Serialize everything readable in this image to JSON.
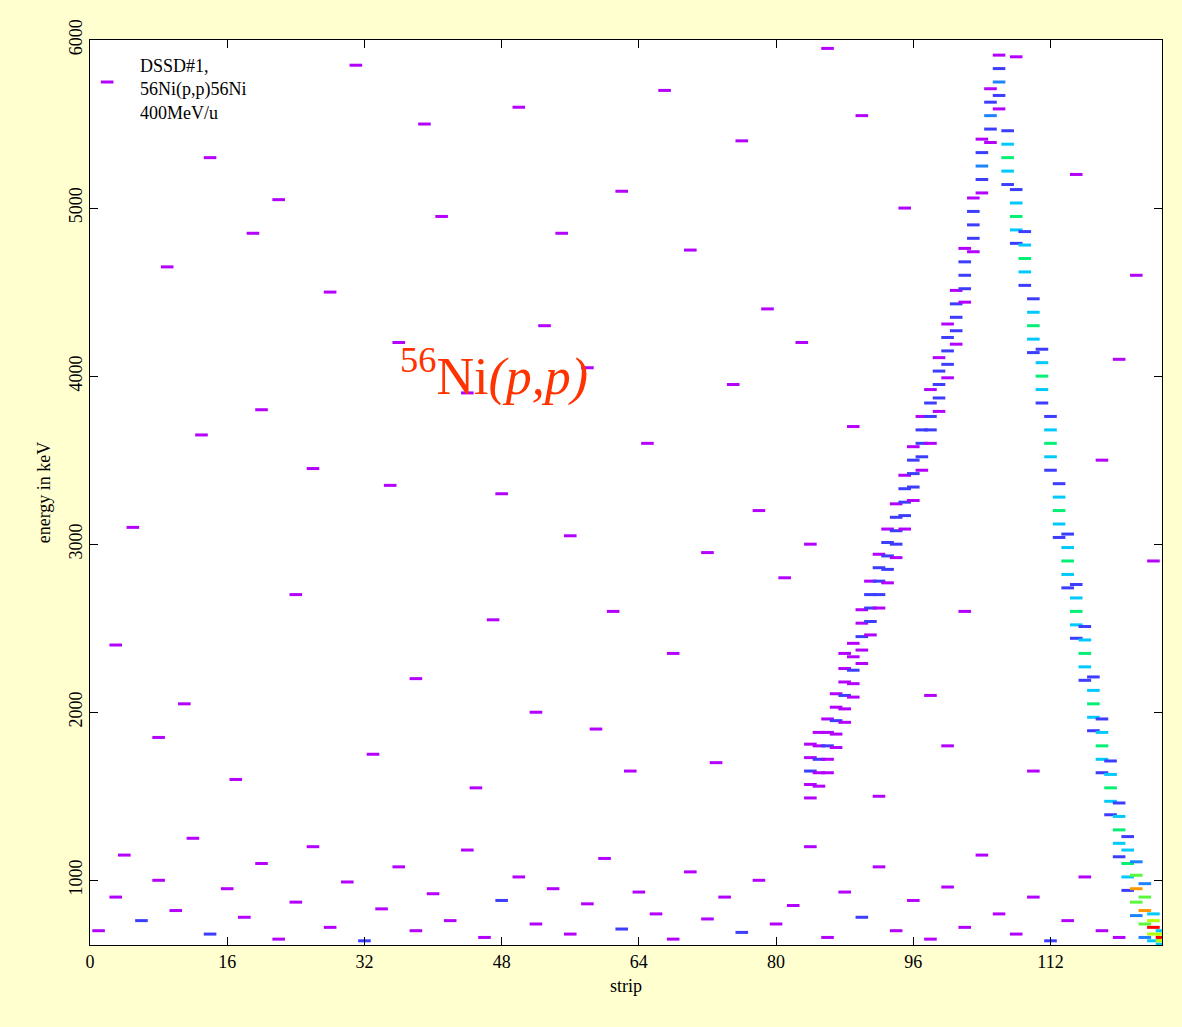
{
  "chart_data": {
    "type": "heatmap",
    "x_title": "strip",
    "y_title": "energy in keV",
    "notes": [
      "DSSD#1,",
      "56Ni(p,p)56Ni",
      "400MeV/u"
    ],
    "annotation": "56Ni(p,p)",
    "annotation_color": "#ff3300",
    "xlim": [
      0,
      125
    ],
    "ylim": [
      615,
      6000
    ],
    "xticks": [
      0,
      16,
      32,
      48,
      64,
      80,
      96,
      112
    ],
    "yticks": [
      1000,
      2000,
      3000,
      4000,
      5000,
      6000
    ],
    "grid": false,
    "zlim": [
      1,
      12
    ],
    "cells": [
      [
        2,
        5750,
        1
      ],
      [
        9,
        4650,
        1
      ],
      [
        14,
        5300,
        1
      ],
      [
        20,
        3800,
        1
      ],
      [
        24,
        2700,
        1
      ],
      [
        28,
        4500,
        1
      ],
      [
        31,
        5850,
        1
      ],
      [
        35,
        3350,
        1
      ],
      [
        38,
        2200,
        1
      ],
      [
        41,
        4950,
        1
      ],
      [
        44,
        3900,
        1
      ],
      [
        47,
        2550,
        1
      ],
      [
        50,
        5600,
        1
      ],
      [
        53,
        4300,
        1
      ],
      [
        56,
        3050,
        1
      ],
      [
        59,
        1900,
        1
      ],
      [
        62,
        5100,
        1
      ],
      [
        65,
        3600,
        1
      ],
      [
        68,
        2350,
        1
      ],
      [
        70,
        4750,
        1
      ],
      [
        73,
        1700,
        1
      ],
      [
        76,
        5400,
        1
      ],
      [
        78,
        3200,
        1
      ],
      [
        81,
        2800,
        1
      ],
      [
        83,
        4200,
        1
      ],
      [
        86,
        5950,
        1
      ],
      [
        89,
        3700,
        1
      ],
      [
        92,
        1500,
        1
      ],
      [
        95,
        5000,
        1
      ],
      [
        98,
        2100,
        1
      ],
      [
        5,
        3100,
        1
      ],
      [
        11,
        2050,
        1
      ],
      [
        17,
        1600,
        1
      ],
      [
        22,
        5050,
        1
      ],
      [
        26,
        3450,
        1
      ],
      [
        33,
        1750,
        1
      ],
      [
        39,
        5500,
        1
      ],
      [
        45,
        1550,
        1
      ],
      [
        52,
        2000,
        1
      ],
      [
        58,
        4050,
        1
      ],
      [
        63,
        1650,
        1
      ],
      [
        67,
        5700,
        1
      ],
      [
        72,
        2950,
        1
      ],
      [
        79,
        4400,
        1
      ],
      [
        84,
        3000,
        1
      ],
      [
        90,
        5550,
        1
      ],
      [
        100,
        1800,
        1
      ],
      [
        108,
        5900,
        1
      ],
      [
        115,
        5200,
        1
      ],
      [
        120,
        4100,
        1
      ],
      [
        118,
        3500,
        1
      ],
      [
        124,
        2900,
        1
      ],
      [
        3,
        2400,
        1
      ],
      [
        8,
        1850,
        1
      ],
      [
        13,
        3650,
        1
      ],
      [
        19,
        4850,
        1
      ],
      [
        36,
        4200,
        1
      ],
      [
        48,
        3300,
        1
      ],
      [
        55,
        4850,
        1
      ],
      [
        61,
        2600,
        1
      ],
      [
        75,
        3950,
        1
      ],
      [
        88,
        2350,
        1
      ],
      [
        102,
        2600,
        1
      ],
      [
        110,
        1650,
        1
      ],
      [
        122,
        4600,
        1
      ],
      [
        1,
        700,
        1
      ],
      [
        3,
        900,
        1
      ],
      [
        4,
        1150,
        1
      ],
      [
        6,
        760,
        2
      ],
      [
        8,
        1000,
        1
      ],
      [
        10,
        820,
        1
      ],
      [
        12,
        1250,
        1
      ],
      [
        14,
        680,
        2
      ],
      [
        16,
        950,
        1
      ],
      [
        18,
        780,
        1
      ],
      [
        20,
        1100,
        1
      ],
      [
        22,
        650,
        1
      ],
      [
        24,
        870,
        1
      ],
      [
        26,
        1200,
        1
      ],
      [
        28,
        720,
        1
      ],
      [
        30,
        990,
        1
      ],
      [
        32,
        640,
        2
      ],
      [
        34,
        830,
        1
      ],
      [
        36,
        1080,
        1
      ],
      [
        38,
        700,
        1
      ],
      [
        40,
        920,
        1
      ],
      [
        42,
        760,
        1
      ],
      [
        44,
        1180,
        1
      ],
      [
        46,
        660,
        1
      ],
      [
        48,
        880,
        2
      ],
      [
        50,
        1020,
        1
      ],
      [
        52,
        740,
        1
      ],
      [
        54,
        950,
        1
      ],
      [
        56,
        680,
        1
      ],
      [
        58,
        860,
        1
      ],
      [
        60,
        1130,
        1
      ],
      [
        62,
        710,
        2
      ],
      [
        64,
        930,
        1
      ],
      [
        66,
        800,
        1
      ],
      [
        68,
        650,
        1
      ],
      [
        70,
        1050,
        1
      ],
      [
        72,
        770,
        1
      ],
      [
        74,
        900,
        1
      ],
      [
        76,
        690,
        2
      ],
      [
        78,
        1000,
        1
      ],
      [
        80,
        740,
        1
      ],
      [
        82,
        850,
        1
      ],
      [
        84,
        1200,
        1
      ],
      [
        86,
        660,
        1
      ],
      [
        88,
        930,
        1
      ],
      [
        90,
        780,
        2
      ],
      [
        92,
        1080,
        1
      ],
      [
        94,
        700,
        1
      ],
      [
        96,
        880,
        1
      ],
      [
        98,
        650,
        1
      ],
      [
        100,
        960,
        1
      ],
      [
        102,
        720,
        1
      ],
      [
        104,
        1150,
        1
      ],
      [
        106,
        800,
        1
      ],
      [
        108,
        680,
        1
      ],
      [
        110,
        900,
        1
      ],
      [
        112,
        640,
        2
      ],
      [
        114,
        760,
        1
      ],
      [
        116,
        1020,
        1
      ],
      [
        118,
        700,
        1
      ],
      [
        120,
        660,
        1
      ],
      [
        84,
        1490,
        1
      ],
      [
        84,
        1570,
        1
      ],
      [
        84,
        1650,
        2
      ],
      [
        84,
        1730,
        1
      ],
      [
        84,
        1810,
        1
      ],
      [
        85,
        1560,
        1
      ],
      [
        85,
        1640,
        1
      ],
      [
        85,
        1720,
        2
      ],
      [
        85,
        1800,
        1
      ],
      [
        85,
        1880,
        1
      ],
      [
        86,
        1640,
        1
      ],
      [
        86,
        1720,
        1
      ],
      [
        86,
        1800,
        2
      ],
      [
        86,
        1880,
        1
      ],
      [
        86,
        1960,
        1
      ],
      [
        87,
        1790,
        1
      ],
      [
        87,
        1870,
        1
      ],
      [
        87,
        1950,
        2
      ],
      [
        87,
        2030,
        1
      ],
      [
        87,
        2110,
        1
      ],
      [
        88,
        1940,
        1
      ],
      [
        88,
        2020,
        1
      ],
      [
        88,
        2100,
        2
      ],
      [
        88,
        2180,
        1
      ],
      [
        88,
        2260,
        1
      ],
      [
        89,
        2090,
        1
      ],
      [
        89,
        2170,
        1
      ],
      [
        89,
        2250,
        2
      ],
      [
        89,
        2330,
        1
      ],
      [
        89,
        2410,
        1
      ],
      [
        90,
        2290,
        1
      ],
      [
        90,
        2370,
        1
      ],
      [
        90,
        2450,
        2
      ],
      [
        90,
        2530,
        1
      ],
      [
        90,
        2610,
        1
      ],
      [
        91,
        2460,
        1
      ],
      [
        91,
        2540,
        2
      ],
      [
        91,
        2620,
        2
      ],
      [
        91,
        2700,
        2
      ],
      [
        91,
        2780,
        1
      ],
      [
        92,
        2620,
        1
      ],
      [
        92,
        2700,
        2
      ],
      [
        92,
        2780,
        2
      ],
      [
        92,
        2860,
        2
      ],
      [
        92,
        2940,
        1
      ],
      [
        93,
        2770,
        1
      ],
      [
        93,
        2850,
        2
      ],
      [
        93,
        2930,
        2
      ],
      [
        93,
        3010,
        2
      ],
      [
        93,
        3090,
        1
      ],
      [
        94,
        2920,
        1
      ],
      [
        94,
        3000,
        2
      ],
      [
        94,
        3080,
        2
      ],
      [
        94,
        3160,
        2
      ],
      [
        94,
        3240,
        1
      ],
      [
        95,
        3090,
        1
      ],
      [
        95,
        3170,
        2
      ],
      [
        95,
        3250,
        2
      ],
      [
        95,
        3330,
        2
      ],
      [
        95,
        3410,
        1
      ],
      [
        96,
        3260,
        1
      ],
      [
        96,
        3340,
        2
      ],
      [
        96,
        3420,
        2
      ],
      [
        96,
        3500,
        2
      ],
      [
        96,
        3580,
        1
      ],
      [
        97,
        3440,
        1
      ],
      [
        97,
        3520,
        2
      ],
      [
        97,
        3600,
        2
      ],
      [
        97,
        3680,
        2
      ],
      [
        97,
        3760,
        1
      ],
      [
        98,
        3600,
        1
      ],
      [
        98,
        3680,
        2
      ],
      [
        98,
        3760,
        2
      ],
      [
        98,
        3840,
        2
      ],
      [
        98,
        3920,
        1
      ],
      [
        99,
        3790,
        1
      ],
      [
        99,
        3870,
        2
      ],
      [
        99,
        3950,
        2
      ],
      [
        99,
        4030,
        2
      ],
      [
        99,
        4110,
        1
      ],
      [
        100,
        3990,
        1
      ],
      [
        100,
        4070,
        2
      ],
      [
        100,
        4150,
        2
      ],
      [
        100,
        4230,
        2
      ],
      [
        100,
        4310,
        1
      ],
      [
        101,
        4190,
        1
      ],
      [
        101,
        4270,
        2
      ],
      [
        101,
        4350,
        2
      ],
      [
        101,
        4430,
        2
      ],
      [
        101,
        4510,
        1
      ],
      [
        102,
        4440,
        1
      ],
      [
        102,
        4520,
        2
      ],
      [
        102,
        4600,
        2
      ],
      [
        102,
        4680,
        2
      ],
      [
        102,
        4760,
        1
      ],
      [
        103,
        4740,
        1
      ],
      [
        103,
        4820,
        2
      ],
      [
        103,
        4900,
        2
      ],
      [
        103,
        4980,
        2
      ],
      [
        103,
        5060,
        1
      ],
      [
        104,
        5090,
        1
      ],
      [
        104,
        5170,
        2
      ],
      [
        104,
        5250,
        3
      ],
      [
        104,
        5330,
        2
      ],
      [
        104,
        5410,
        1
      ],
      [
        105,
        5390,
        1
      ],
      [
        105,
        5470,
        2
      ],
      [
        105,
        5550,
        3
      ],
      [
        105,
        5630,
        2
      ],
      [
        105,
        5710,
        1
      ],
      [
        106,
        5590,
        1
      ],
      [
        106,
        5670,
        2
      ],
      [
        106,
        5750,
        3
      ],
      [
        106,
        5830,
        2
      ],
      [
        106,
        5910,
        1
      ],
      [
        107,
        5140,
        2
      ],
      [
        107,
        5220,
        4
      ],
      [
        107,
        5300,
        6
      ],
      [
        107,
        5380,
        4
      ],
      [
        107,
        5460,
        2
      ],
      [
        108,
        4790,
        2
      ],
      [
        108,
        4870,
        4
      ],
      [
        108,
        4950,
        6
      ],
      [
        108,
        5030,
        4
      ],
      [
        108,
        5110,
        2
      ],
      [
        109,
        4540,
        2
      ],
      [
        109,
        4620,
        4
      ],
      [
        109,
        4700,
        6
      ],
      [
        109,
        4780,
        4
      ],
      [
        109,
        4860,
        2
      ],
      [
        110,
        4140,
        2
      ],
      [
        110,
        4220,
        4
      ],
      [
        110,
        4300,
        6
      ],
      [
        110,
        4380,
        4
      ],
      [
        110,
        4460,
        2
      ],
      [
        111,
        3840,
        2
      ],
      [
        111,
        3920,
        4
      ],
      [
        111,
        4000,
        6
      ],
      [
        111,
        4080,
        4
      ],
      [
        111,
        4160,
        2
      ],
      [
        112,
        3440,
        2
      ],
      [
        112,
        3520,
        4
      ],
      [
        112,
        3600,
        6
      ],
      [
        112,
        3680,
        4
      ],
      [
        112,
        3760,
        2
      ],
      [
        113,
        3040,
        2
      ],
      [
        113,
        3120,
        4
      ],
      [
        113,
        3200,
        6
      ],
      [
        113,
        3280,
        4
      ],
      [
        113,
        3360,
        2
      ],
      [
        114,
        2740,
        2
      ],
      [
        114,
        2820,
        4
      ],
      [
        114,
        2900,
        6
      ],
      [
        114,
        2980,
        4
      ],
      [
        114,
        3060,
        2
      ],
      [
        115,
        2440,
        2
      ],
      [
        115,
        2520,
        4
      ],
      [
        115,
        2600,
        6
      ],
      [
        115,
        2680,
        4
      ],
      [
        115,
        2760,
        2
      ],
      [
        116,
        2190,
        2
      ],
      [
        116,
        2270,
        4
      ],
      [
        116,
        2350,
        6
      ],
      [
        116,
        2430,
        4
      ],
      [
        116,
        2510,
        2
      ],
      [
        117,
        1890,
        2
      ],
      [
        117,
        1970,
        4
      ],
      [
        117,
        2050,
        6
      ],
      [
        117,
        2130,
        4
      ],
      [
        117,
        2210,
        2
      ],
      [
        118,
        1640,
        2
      ],
      [
        118,
        1720,
        4
      ],
      [
        118,
        1800,
        6
      ],
      [
        118,
        1880,
        4
      ],
      [
        118,
        1960,
        2
      ],
      [
        119,
        1390,
        2
      ],
      [
        119,
        1470,
        4
      ],
      [
        119,
        1550,
        6
      ],
      [
        119,
        1630,
        4
      ],
      [
        119,
        1710,
        2
      ],
      [
        120,
        1140,
        2
      ],
      [
        120,
        1220,
        4
      ],
      [
        120,
        1300,
        6
      ],
      [
        120,
        1380,
        4
      ],
      [
        120,
        1460,
        2
      ],
      [
        121,
        940,
        2
      ],
      [
        121,
        1020,
        4
      ],
      [
        121,
        1100,
        6
      ],
      [
        121,
        1180,
        4
      ],
      [
        121,
        1260,
        2
      ],
      [
        122,
        790,
        3
      ],
      [
        122,
        870,
        7
      ],
      [
        122,
        950,
        10
      ],
      [
        122,
        1030,
        7
      ],
      [
        122,
        1110,
        3
      ],
      [
        123,
        660,
        3
      ],
      [
        123,
        740,
        7
      ],
      [
        123,
        820,
        10
      ],
      [
        123,
        900,
        7
      ],
      [
        123,
        980,
        3
      ],
      [
        124,
        640,
        4
      ],
      [
        124,
        680,
        8
      ],
      [
        124,
        720,
        12
      ],
      [
        124,
        760,
        8
      ],
      [
        124,
        800,
        4
      ],
      [
        125,
        620,
        4
      ],
      [
        125,
        640,
        8
      ],
      [
        125,
        660,
        12
      ],
      [
        125,
        680,
        8
      ],
      [
        125,
        700,
        4
      ]
    ]
  }
}
